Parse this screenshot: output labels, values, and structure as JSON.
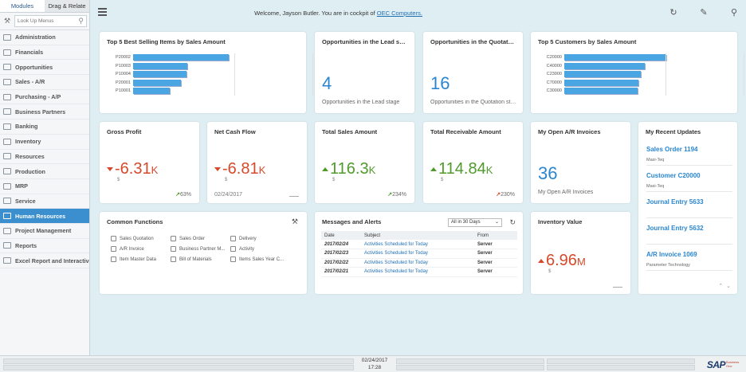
{
  "sidebar": {
    "tabs": [
      "Modules",
      "Drag & Relate"
    ],
    "search_placeholder": "Look Up Menus",
    "items": [
      {
        "label": "Administration"
      },
      {
        "label": "Financials"
      },
      {
        "label": "Opportunities"
      },
      {
        "label": "Sales - A/R"
      },
      {
        "label": "Purchasing - A/P"
      },
      {
        "label": "Business Partners"
      },
      {
        "label": "Banking"
      },
      {
        "label": "Inventory"
      },
      {
        "label": "Resources"
      },
      {
        "label": "Production"
      },
      {
        "label": "MRP"
      },
      {
        "label": "Service"
      },
      {
        "label": "Human Resources",
        "active": true
      },
      {
        "label": "Project Management"
      },
      {
        "label": "Reports"
      },
      {
        "label": "Excel Report and Interactive Analysis"
      }
    ]
  },
  "header": {
    "welcome_prefix": "Welcome, Jayson Butler. You are in cockpit of",
    "company_link": "OEC Computers."
  },
  "top5_items": {
    "title": "Top 5 Best Selling Items by Sales Amount",
    "chart_data": {
      "type": "bar",
      "orientation": "horizontal",
      "categories": [
        "P20002",
        "P10003",
        "P10004",
        "P20001",
        "P10001"
      ],
      "values": [
        100,
        57,
        56,
        50,
        38
      ],
      "color": "#4aa6e3"
    }
  },
  "opp_lead": {
    "title": "Opportunities in the Lead stage",
    "value": "4",
    "caption": "Opportunities in the Lead stage"
  },
  "opp_quote": {
    "title": "Opportunities in the Quotation stage",
    "value": "16",
    "caption": "Opportunities in the Quotation stage"
  },
  "top5_customers": {
    "title": "Top 5 Customers by Sales Amount",
    "chart_data": {
      "type": "bar",
      "orientation": "horizontal",
      "categories": [
        "C20000",
        "C40000",
        "C23900",
        "C70000",
        "C30000"
      ],
      "values": [
        100,
        79,
        75,
        73,
        72
      ],
      "color": "#4aa6e3"
    }
  },
  "gross_profit": {
    "title": "Gross Profit",
    "value": "-6.31",
    "unit": "K",
    "currency": "$",
    "trend": "63%",
    "trend_dir": "up"
  },
  "net_cash_flow": {
    "title": "Net Cash Flow",
    "value": "-6.81",
    "unit": "K",
    "currency": "$",
    "date": "02/24/2017"
  },
  "total_sales": {
    "title": "Total Sales Amount",
    "value": "116.3",
    "unit": "K",
    "currency": "$",
    "trend": "234%",
    "trend_dir": "up"
  },
  "total_receivable": {
    "title": "Total Receivable Amount",
    "value": "114.84",
    "unit": "K",
    "currency": "$",
    "trend": "230%",
    "trend_dir": "up-red"
  },
  "open_ar": {
    "title": "My Open A/R Invoices",
    "value": "36",
    "caption": "My Open A/R Invoices"
  },
  "recent_updates": {
    "title": "My Recent Updates",
    "items": [
      {
        "title": "Sales Order 1194",
        "sub": "Maxi-Teq"
      },
      {
        "title": "Customer C20000",
        "sub": "Maxi-Teq"
      },
      {
        "title": "Journal Entry 5633",
        "sub": ""
      },
      {
        "title": "Journal Entry 5632",
        "sub": ""
      },
      {
        "title": "A/R Invoice 1069",
        "sub": "Parameter Technology"
      }
    ]
  },
  "common_functions": {
    "title": "Common Functions",
    "items": [
      "Sales Quotation",
      "Sales Order",
      "Delivery",
      "A/R Invoice",
      "Business Partner M...",
      "Activity",
      "Item Master Data",
      "Bill of Materials",
      "Items Sales Year C..."
    ]
  },
  "messages": {
    "title": "Messages and Alerts",
    "filter": "All in 30 Days",
    "columns": [
      "Date",
      "Subject",
      "From"
    ],
    "rows": [
      {
        "date": "2017/02/24",
        "subject": "Activities Scheduled for Today",
        "from": "Server"
      },
      {
        "date": "2017/02/23",
        "subject": "Activities Scheduled for Today",
        "from": "Server"
      },
      {
        "date": "2017/02/22",
        "subject": "Activities Scheduled for Today",
        "from": "Server"
      },
      {
        "date": "2017/02/21",
        "subject": "Activities Scheduled for Today",
        "from": "Server"
      }
    ]
  },
  "inventory": {
    "title": "Inventory Value",
    "value": "6.96",
    "unit": "M",
    "currency": "$"
  },
  "status": {
    "date": "02/24/2017",
    "time": "17:28",
    "brand": "SAP",
    "brand_sub": "Business One"
  }
}
